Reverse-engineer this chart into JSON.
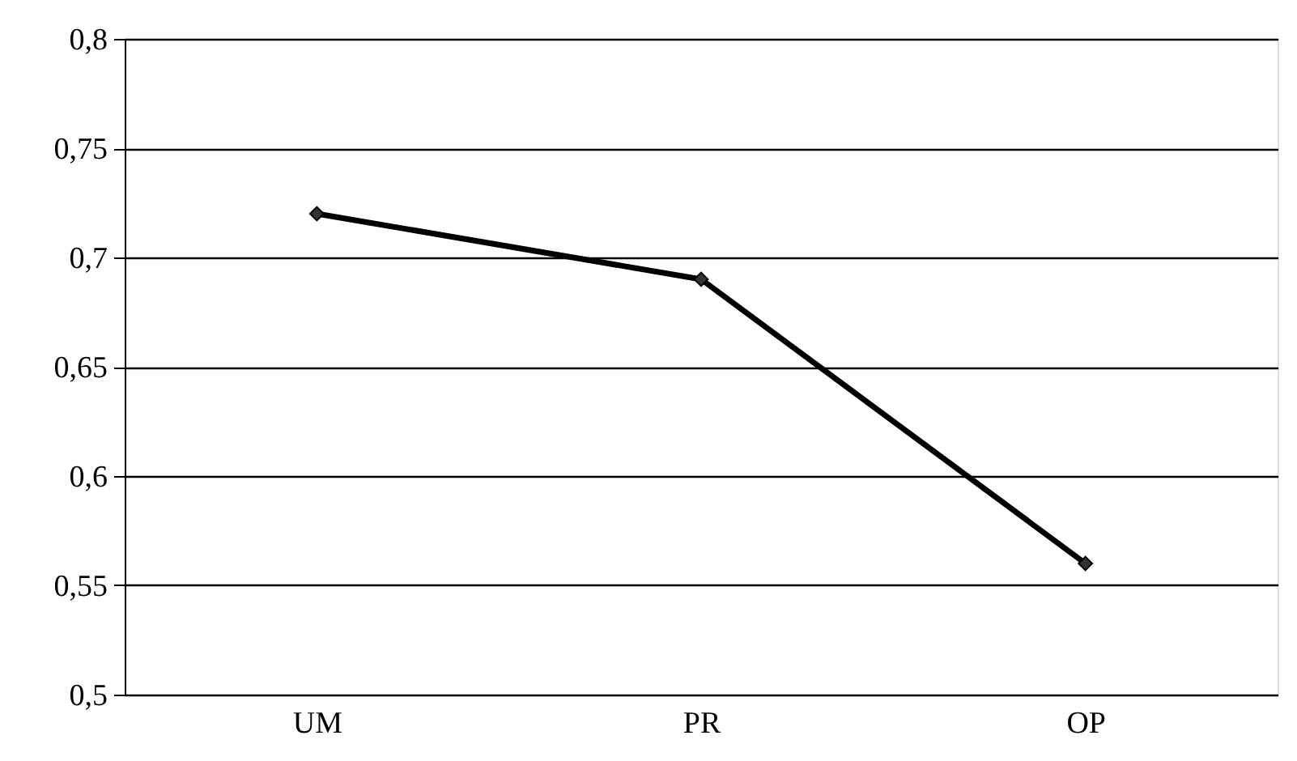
{
  "chart_data": {
    "type": "line",
    "categories": [
      "UM",
      "PR",
      "OP"
    ],
    "series": [
      {
        "color": "#000000",
        "values": [
          0.72,
          0.69,
          0.56
        ]
      }
    ],
    "ylim": [
      0.5,
      0.8
    ],
    "yticks": [
      {
        "value": 0.5,
        "label": "0,5"
      },
      {
        "value": 0.55,
        "label": "0,55"
      },
      {
        "value": 0.6,
        "label": "0,6"
      },
      {
        "value": 0.65,
        "label": "0,65"
      },
      {
        "value": 0.7,
        "label": "0,7"
      },
      {
        "value": 0.75,
        "label": "0,75"
      },
      {
        "value": 0.8,
        "label": "0,8"
      }
    ],
    "grid": "y",
    "marker": "diamond",
    "line_style": "solid"
  }
}
